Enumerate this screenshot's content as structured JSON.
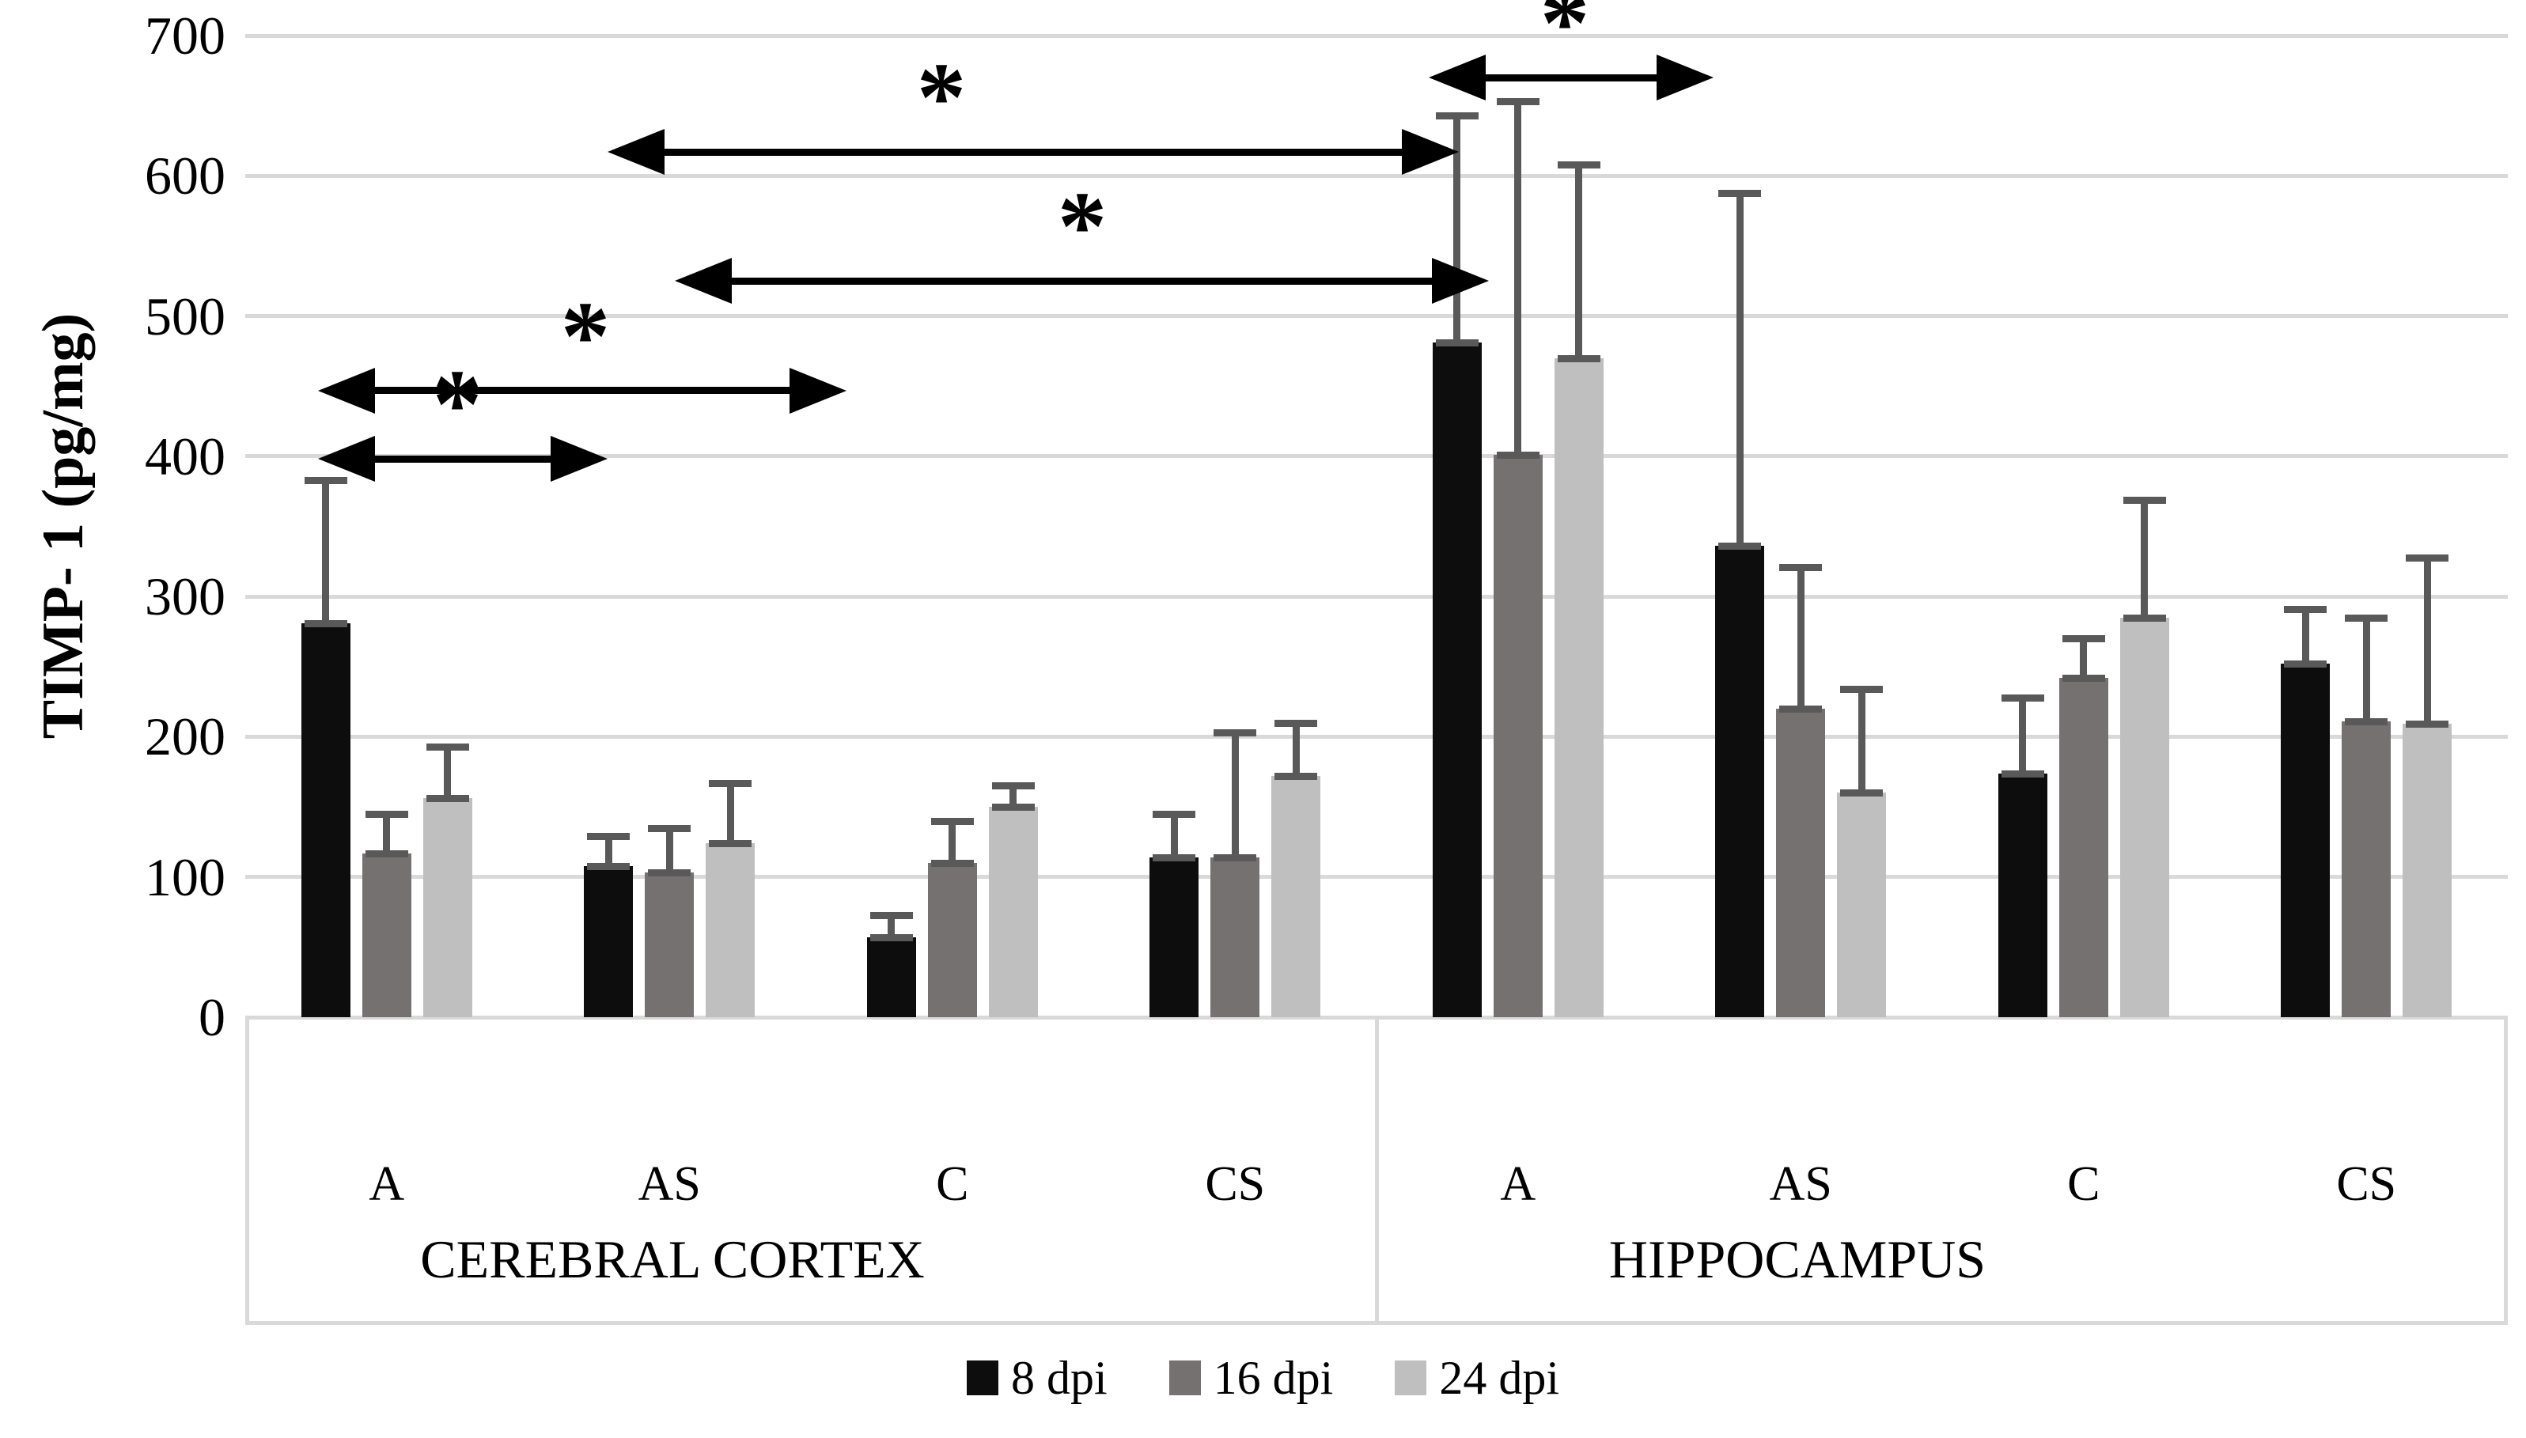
{
  "chart_data": {
    "type": "bar",
    "title": "",
    "ylabel": "TIMP- 1 (pg/mg)",
    "xlabel": "",
    "ylim": [
      0,
      700
    ],
    "ytick_step": 100,
    "yticks": [
      "0",
      "100",
      "200",
      "300",
      "400",
      "500",
      "600",
      "700"
    ],
    "grid": "horizontal",
    "legend_position": "bottom",
    "sections": [
      {
        "label": "CEREBRAL CORTEX",
        "categories": [
          "A",
          "AS",
          "C",
          "CS"
        ]
      },
      {
        "label": "HIPPOCAMPUS",
        "categories": [
          "A",
          "AS",
          "C",
          "CS"
        ]
      }
    ],
    "series": [
      {
        "name": "8 dpi",
        "color": "#0d0d0d",
        "values": [
          [
            281,
            108,
            57,
            114
          ],
          [
            481,
            336,
            174,
            252
          ]
        ],
        "errors": [
          [
            102,
            21,
            16,
            31
          ],
          [
            162,
            252,
            54,
            39
          ]
        ]
      },
      {
        "name": "16 dpi",
        "color": "#767171",
        "values": [
          [
            117,
            103,
            110,
            114
          ],
          [
            401,
            220,
            242,
            211
          ]
        ],
        "errors": [
          [
            28,
            32,
            30,
            89
          ],
          [
            252,
            101,
            28,
            74
          ]
        ]
      },
      {
        "name": "24 dpi",
        "color": "#bfbfbf",
        "values": [
          [
            156,
            124,
            150,
            172
          ],
          [
            470,
            160,
            285,
            209
          ]
        ],
        "errors": [
          [
            37,
            43,
            15,
            38
          ],
          [
            138,
            74,
            84,
            119
          ]
        ]
      }
    ],
    "significance_marker": "*",
    "significance": [
      {
        "level": 398,
        "x1": 402,
        "x2": 768,
        "star_x": 578
      },
      {
        "level": 447,
        "x1": 402,
        "x2": 1070,
        "star_x": 740
      },
      {
        "level": 525,
        "x1": 853,
        "x2": 1882,
        "star_x": 1368
      },
      {
        "level": 617,
        "x1": 768,
        "x2": 1844,
        "star_x": 1190
      },
      {
        "level": 670,
        "x1": 1806,
        "x2": 2166,
        "star_x": 1978
      }
    ],
    "colors": {
      "gridline": "#d9d9d9",
      "error_bar": "#595959",
      "arrow": "#000000",
      "background": "#ffffff"
    }
  }
}
